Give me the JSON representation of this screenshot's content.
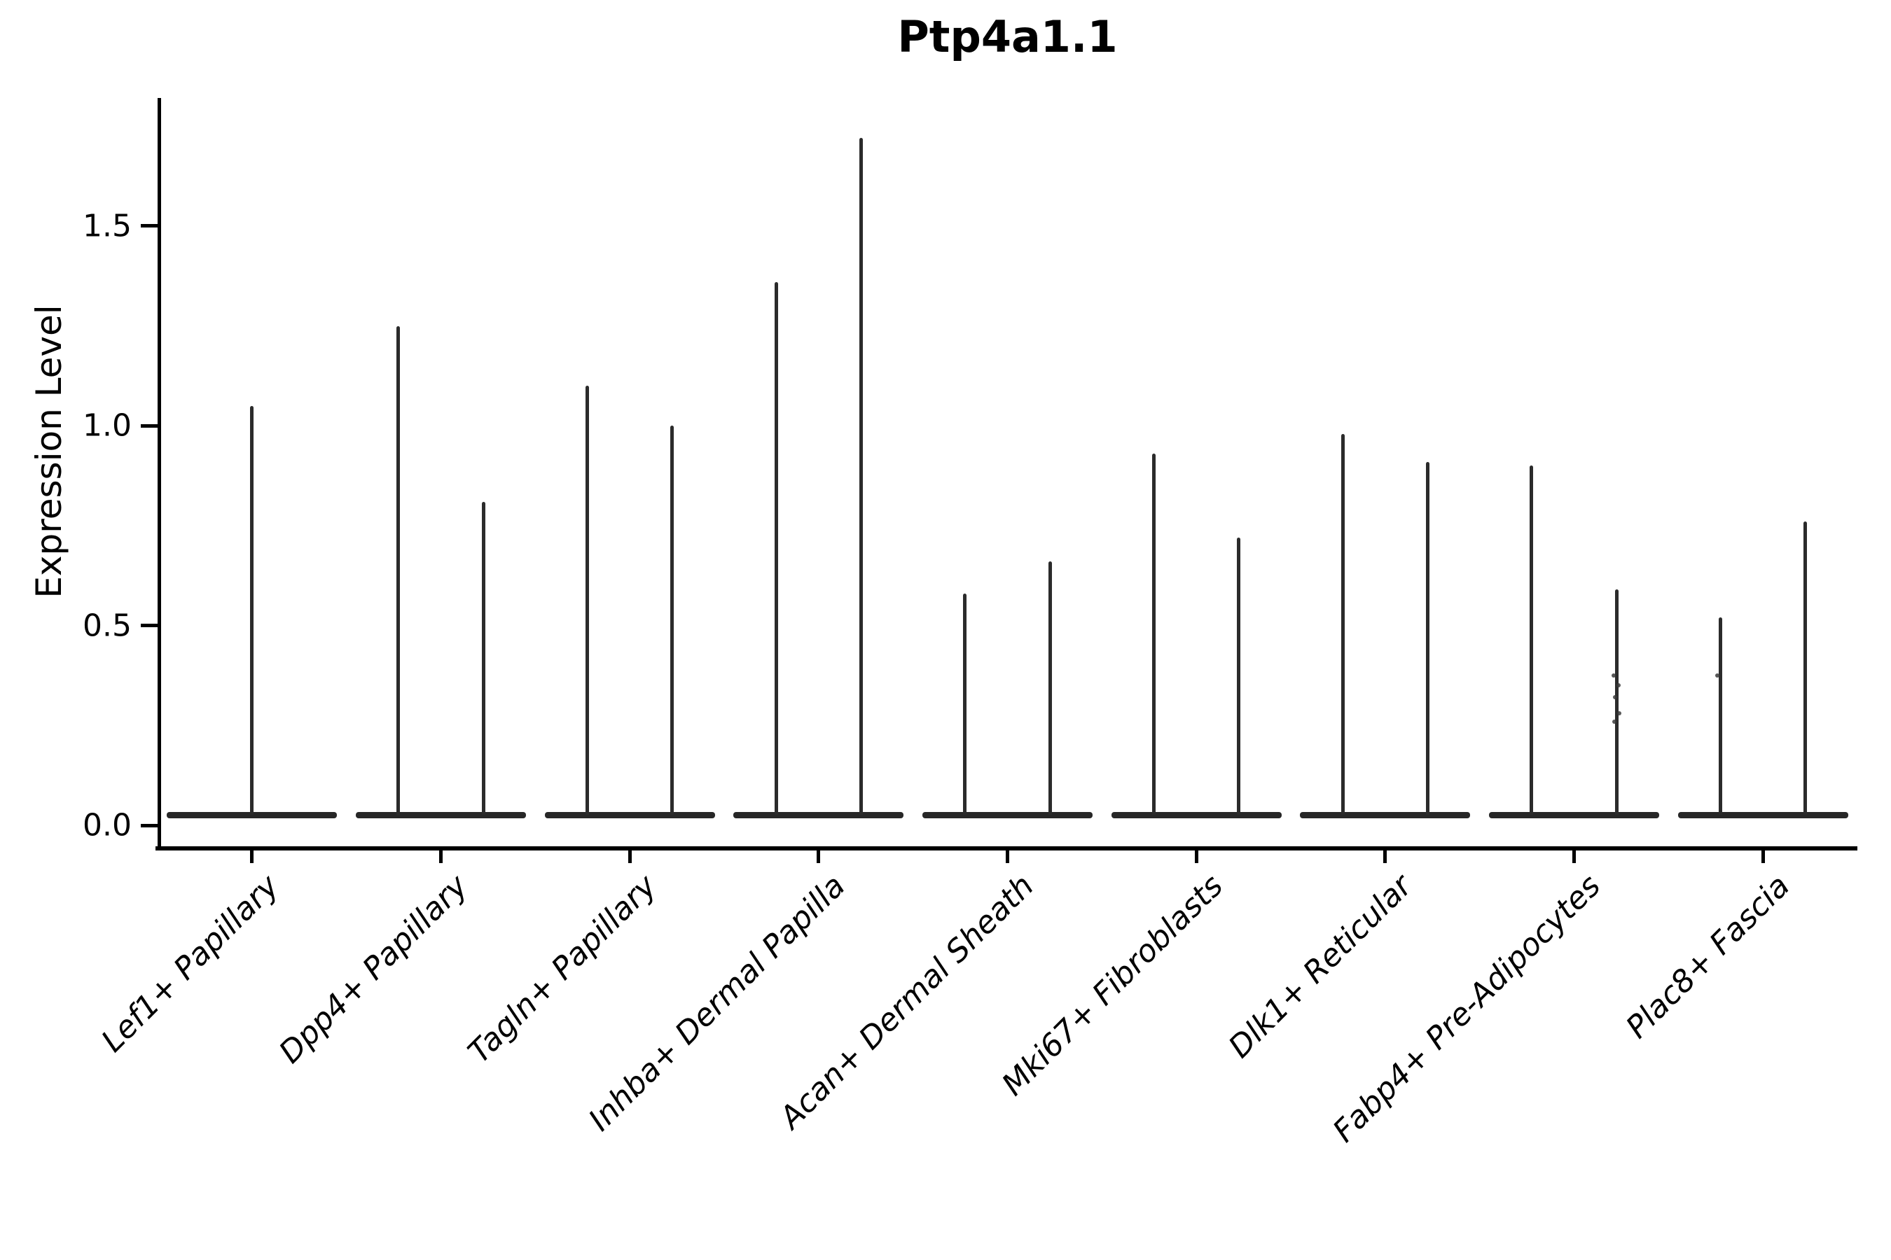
{
  "chart_data": {
    "type": "violin",
    "title": "Ptp4a1.1",
    "ylabel": "Expression Level",
    "ylim": [
      0,
      1.82
    ],
    "yticks": [
      "0.0",
      "0.5",
      "1.0",
      "1.5"
    ],
    "ytick_values": [
      0.0,
      0.5,
      1.0,
      1.5
    ],
    "grid": "off",
    "legend": "none",
    "line_color": "#2b2b2b",
    "axis_color": "#000000",
    "categories": [
      "Lef1+ Papillary",
      "Dpp4+ Papillary",
      "Tagln+ Papillary",
      "Inhba+ Dermal Papilla",
      "Acan+ Dermal Sheath",
      "Mki67+ Fibroblasts",
      "Dlk1+ Reticular",
      "Fabp4+ Pre-Adipocytes",
      "Plac8+ Fascia"
    ],
    "series": [
      {
        "category": "Lef1+ Papillary",
        "violins": [
          {
            "position": "center",
            "max": 1.05
          }
        ]
      },
      {
        "category": "Dpp4+ Papillary",
        "violins": [
          {
            "position": "left",
            "max": 1.25
          },
          {
            "position": "right",
            "max": 0.81
          }
        ]
      },
      {
        "category": "Tagln+ Papillary",
        "violins": [
          {
            "position": "left",
            "max": 1.1
          },
          {
            "position": "right",
            "max": 1.0
          }
        ]
      },
      {
        "category": "Inhba+ Dermal Papilla",
        "violins": [
          {
            "position": "left",
            "max": 1.36
          },
          {
            "position": "right",
            "max": 1.72
          }
        ]
      },
      {
        "category": "Acan+ Dermal Sheath",
        "violins": [
          {
            "position": "left",
            "max": 0.58
          },
          {
            "position": "right",
            "max": 0.66
          }
        ]
      },
      {
        "category": "Mki67+ Fibroblasts",
        "violins": [
          {
            "position": "left",
            "max": 0.93
          },
          {
            "position": "right",
            "max": 0.72
          }
        ]
      },
      {
        "category": "Dlk1+ Reticular",
        "violins": [
          {
            "position": "left",
            "max": 0.98
          },
          {
            "position": "right",
            "max": 0.91
          }
        ]
      },
      {
        "category": "Fabp4+ Pre-Adipocytes",
        "violins": [
          {
            "position": "left",
            "max": 0.9
          },
          {
            "position": "right",
            "max": 0.59,
            "points": [
              0.375,
              0.35,
              0.32,
              0.28,
              0.26
            ]
          }
        ]
      },
      {
        "category": "Plac8+ Fascia",
        "violins": [
          {
            "position": "left",
            "max": 0.52,
            "points": [
              0.375
            ]
          },
          {
            "position": "right",
            "max": 0.76
          }
        ]
      }
    ]
  }
}
